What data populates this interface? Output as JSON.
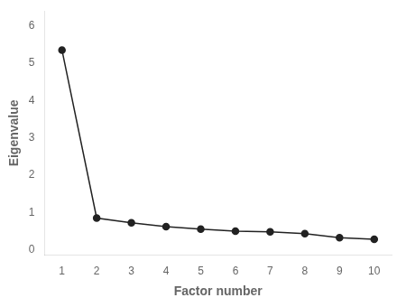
{
  "chart_data": {
    "type": "line",
    "x": [
      1,
      2,
      3,
      4,
      5,
      6,
      7,
      8,
      9,
      10
    ],
    "values": [
      5.35,
      0.85,
      0.72,
      0.62,
      0.55,
      0.5,
      0.48,
      0.43,
      0.32,
      0.28
    ],
    "xlabel": "Factor number",
    "ylabel": "Eigenvalue",
    "xlim": [
      0.5,
      10.5
    ],
    "ylim": [
      -0.15,
      6.4
    ],
    "xticks": [
      1,
      2,
      3,
      4,
      5,
      6,
      7,
      8,
      9,
      10
    ],
    "yticks": [
      0,
      1,
      2,
      3,
      4,
      5,
      6
    ],
    "color": "#222222",
    "marker": "circle",
    "grid": false
  }
}
